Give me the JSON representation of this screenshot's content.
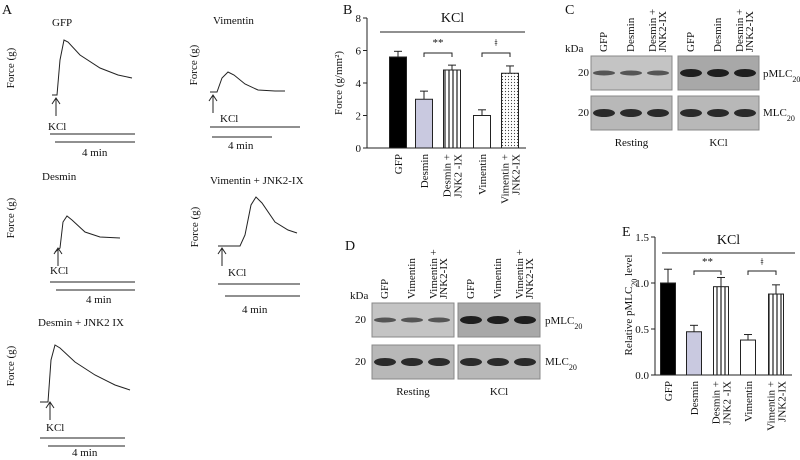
{
  "panel_a": {
    "label": "A",
    "traces": [
      {
        "name": "GFP",
        "y_label": "Force (g)",
        "stimulus": "KCl",
        "time_scale": "4 min"
      },
      {
        "name": "Vimentin",
        "y_label": "Force (g)",
        "stimulus": "KCl",
        "time_scale": "4 min"
      },
      {
        "name": "Desmin",
        "y_label": "Force (g)",
        "stimulus": "KCl",
        "time_scale": "4 min"
      },
      {
        "name": "Vimentin + JNK2-IX",
        "y_label": "Force (g)",
        "stimulus": "KCl",
        "time_scale": "4 min"
      },
      {
        "name": "Desmin + JNK2 IX",
        "y_label": "Force (g)",
        "stimulus": "KCl",
        "time_scale": "4 min"
      }
    ]
  },
  "chart_data": [
    {
      "type": "bar",
      "panel": "B",
      "title": "KCl",
      "y_label": "Force (g/mm²)",
      "categories": [
        [
          "GFP"
        ],
        [
          "Desmin"
        ],
        [
          "Desmin +",
          "JNK2 -IX"
        ],
        [
          "Vimentin"
        ],
        [
          "Vimentin +",
          "JNK2-IX"
        ]
      ],
      "values": [
        5.6,
        3.0,
        4.8,
        2.0,
        4.6
      ],
      "errors": [
        0.35,
        0.5,
        0.3,
        0.35,
        0.45
      ],
      "fills": [
        "#000000",
        "#c9c9e0",
        "stripes",
        "#ffffff",
        "dots"
      ],
      "annotations": [
        "**",
        "ǂ"
      ],
      "ylim": [
        0,
        8
      ],
      "yticks": [
        0,
        2,
        4,
        6,
        8
      ]
    },
    {
      "type": "bar",
      "panel": "E",
      "title": "KCl",
      "y_label": {
        "text": "Relative pMLC",
        "sub": "20",
        "after": " level"
      },
      "categories": [
        [
          "GFP"
        ],
        [
          "Desmin"
        ],
        [
          "Desmin +",
          "JNK2 -IX"
        ],
        [
          "Vimentin"
        ],
        [
          "Vimentin +",
          "JNK2-IX"
        ]
      ],
      "values": [
        1.0,
        0.47,
        0.96,
        0.38,
        0.88
      ],
      "errors": [
        0.15,
        0.07,
        0.1,
        0.06,
        0.1
      ],
      "fills": [
        "#000000",
        "#c9c9e0",
        "stripes",
        "#ffffff",
        "stripes"
      ],
      "annotations": [
        "**",
        "ǂ"
      ],
      "ylim": [
        0,
        1.5
      ],
      "yticks": [
        {
          "value": 0,
          "label": "0.0"
        },
        {
          "value": 0.5,
          "label": "0.5"
        },
        {
          "value": 1,
          "label": "1.0"
        },
        {
          "value": 1.5,
          "label": "1.5"
        }
      ]
    }
  ],
  "panel_c": {
    "label": "C",
    "kda": "kDa",
    "marker_top": "20",
    "marker_bottom": "20",
    "row_top": {
      "text": "pMLC",
      "sub": "20"
    },
    "row_bottom": {
      "text": "MLC",
      "sub": "20"
    },
    "groups": [
      {
        "name": "Resting",
        "lanes": [
          [
            "GFP"
          ],
          [
            "Desmin"
          ],
          [
            "Desmin +",
            "JNK2-IX"
          ]
        ]
      },
      {
        "name": "KCl",
        "lanes": [
          [
            "GFP"
          ],
          [
            "Desmin"
          ],
          [
            "Desmin +",
            "JNK2-IX"
          ]
        ]
      }
    ]
  },
  "panel_d": {
    "label": "D",
    "kda": "kDa",
    "marker_top": "20",
    "marker_bottom": "20",
    "row_top": {
      "text": "pMLC",
      "sub": "20"
    },
    "row_bottom": {
      "text": "MLC",
      "sub": "20"
    },
    "groups": [
      {
        "name": "Resting",
        "lanes": [
          [
            "GFP"
          ],
          [
            "Vimentin"
          ],
          [
            "Vimentin +",
            "JNK2-IX"
          ]
        ]
      },
      {
        "name": "KCl",
        "lanes": [
          [
            "GFP"
          ],
          [
            "Vimentin"
          ],
          [
            "Vimentin +",
            "JNK2-IX"
          ]
        ]
      }
    ]
  }
}
